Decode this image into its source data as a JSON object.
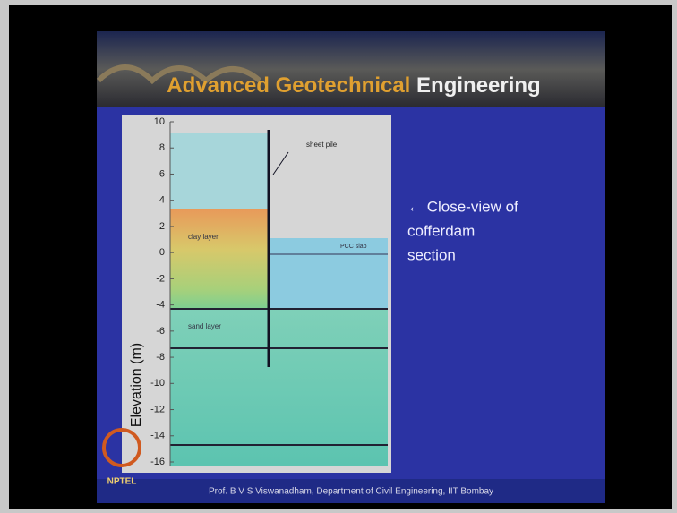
{
  "header": {
    "title_highlight": "Advanced Geotechnical",
    "title_rest": "Engineering"
  },
  "figure": {
    "y_axis_label": "Elevation (m)",
    "yticks": [
      10,
      8,
      6,
      4,
      2,
      0,
      -2,
      -4,
      -6,
      -8,
      -10,
      -12,
      -14,
      -16
    ],
    "labels": {
      "sheet_pile": "sheet pile",
      "clay_layer": "clay layer",
      "sand_layer": "sand layer",
      "pcc_slab": "PCC slab"
    }
  },
  "caption": {
    "lines": [
      "← Close-view of",
      "cofferdam",
      "section"
    ]
  },
  "logo": "NPTEL",
  "footer": "Prof. B V S Viswanadham, Department of Civil Engineering, IIT Bombay"
}
